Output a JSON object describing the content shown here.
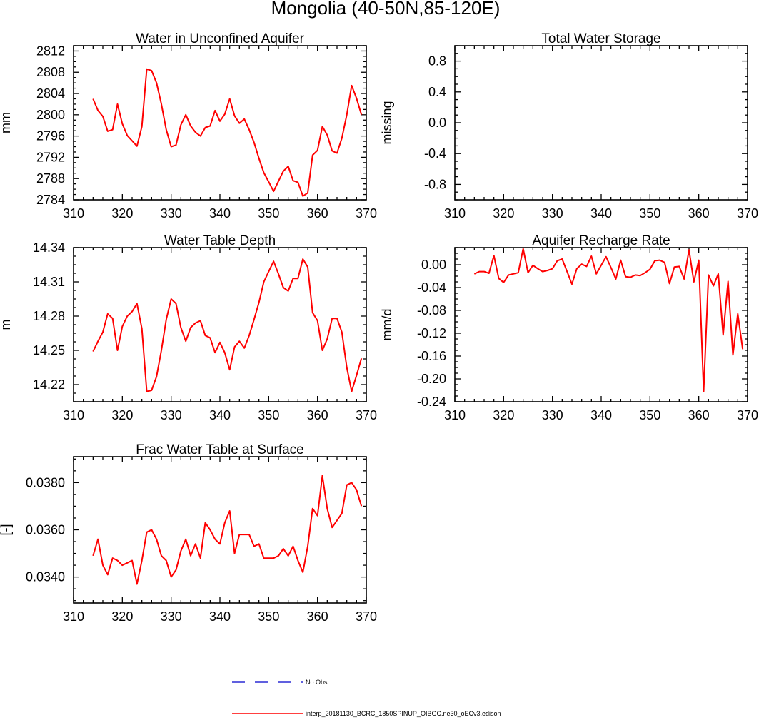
{
  "figure_title": "Mongolia (40-50N,85-120E)",
  "legend": {
    "entries": [
      {
        "label": "No Obs",
        "color": "#0000cc",
        "style": "dashed"
      },
      {
        "label": "interp_20181130_BCRC_1850SPINUP_OIBGC.ne30_oECv3.edison",
        "color": "#ff0000",
        "style": "solid"
      }
    ]
  },
  "chart_data": [
    {
      "id": "water-unconfined-aquifer",
      "type": "line",
      "title": "Water in Unconfined Aquifer",
      "xlabel": "",
      "ylabel": "mm",
      "xlim": [
        310,
        370
      ],
      "ylim": [
        2784,
        2813
      ],
      "xticks": [
        310,
        320,
        330,
        340,
        350,
        360,
        370
      ],
      "yticks": [
        2784,
        2788,
        2792,
        2796,
        2800,
        2804,
        2808,
        2812
      ],
      "ytick_labels": [
        "2784",
        "2788",
        "2792",
        "2796",
        "2800",
        "2804",
        "2808",
        "2812"
      ],
      "series": [
        {
          "name": "interp_20181130_BCRC_1850SPINUP_OIBGC.ne30_oECv3.edison",
          "color": "#ff0000",
          "x": [
            314,
            315,
            316,
            317,
            318,
            319,
            320,
            321,
            322,
            323,
            324,
            325,
            326,
            327,
            328,
            329,
            330,
            331,
            332,
            333,
            334,
            335,
            336,
            337,
            338,
            339,
            340,
            341,
            342,
            343,
            344,
            345,
            346,
            347,
            348,
            349,
            350,
            351,
            352,
            353,
            354,
            355,
            356,
            357,
            358,
            359,
            360,
            361,
            362,
            363,
            364,
            365,
            366,
            367,
            368,
            369
          ],
          "values": [
            2803,
            2800.8,
            2799.7,
            2796.9,
            2797.2,
            2802,
            2798.3,
            2796.1,
            2795.1,
            2794.1,
            2797.8,
            2808.6,
            2808.3,
            2806,
            2802,
            2797.2,
            2794,
            2794.3,
            2798.1,
            2800,
            2797.9,
            2796.7,
            2796,
            2797.6,
            2797.9,
            2800.8,
            2798.8,
            2800.1,
            2803,
            2799.8,
            2798.4,
            2799.2,
            2797.2,
            2794.8,
            2791.8,
            2789.1,
            2787.4,
            2785.6,
            2787.5,
            2789.4,
            2790.3,
            2787.6,
            2787.3,
            2784.7,
            2785.3,
            2792.4,
            2793.3,
            2797.8,
            2796.2,
            2793.2,
            2792.8,
            2795.6,
            2800,
            2805.5,
            2803.1,
            2800
          ]
        }
      ]
    },
    {
      "id": "total-water-storage",
      "type": "line",
      "title": "Total Water Storage",
      "xlabel": "",
      "ylabel": "missing",
      "xlim": [
        310,
        370
      ],
      "ylim": [
        -1,
        1
      ],
      "xticks": [
        310,
        320,
        330,
        340,
        350,
        360,
        370
      ],
      "yticks": [
        -0.8,
        -0.4,
        0,
        0.4,
        0.8
      ],
      "ytick_labels": [
        "-0.8",
        "-0.4",
        "0.0",
        "0.4",
        "0.8"
      ],
      "series": []
    },
    {
      "id": "water-table-depth",
      "type": "line",
      "title": "Water Table Depth",
      "xlabel": "",
      "ylabel": "m",
      "xlim": [
        310,
        370
      ],
      "ylim": [
        14.205,
        14.34
      ],
      "xticks": [
        310,
        320,
        330,
        340,
        350,
        360,
        370
      ],
      "yticks": [
        14.22,
        14.25,
        14.28,
        14.31,
        14.34
      ],
      "ytick_labels": [
        "14.22",
        "14.25",
        "14.28",
        "14.31",
        "14.34"
      ],
      "series": [
        {
          "name": "interp_20181130_BCRC_1850SPINUP_OIBGC.ne30_oECv3.edison",
          "color": "#ff0000",
          "x": [
            314,
            315,
            316,
            317,
            318,
            319,
            320,
            321,
            322,
            323,
            324,
            325,
            326,
            327,
            328,
            329,
            330,
            331,
            332,
            333,
            334,
            335,
            336,
            337,
            338,
            339,
            340,
            341,
            342,
            343,
            344,
            345,
            346,
            347,
            348,
            349,
            350,
            351,
            352,
            353,
            354,
            355,
            356,
            357,
            358,
            359,
            360,
            361,
            362,
            363,
            364,
            365,
            366,
            367,
            368,
            369
          ],
          "values": [
            14.249,
            14.258,
            14.266,
            14.282,
            14.278,
            14.25,
            14.271,
            14.28,
            14.284,
            14.291,
            14.269,
            14.214,
            14.215,
            14.227,
            14.25,
            14.277,
            14.295,
            14.291,
            14.27,
            14.258,
            14.27,
            14.274,
            14.276,
            14.263,
            14.261,
            14.248,
            14.257,
            14.248,
            14.233,
            14.253,
            14.258,
            14.252,
            14.263,
            14.277,
            14.292,
            14.31,
            14.319,
            14.328,
            14.317,
            14.305,
            14.302,
            14.313,
            14.313,
            14.33,
            14.323,
            14.283,
            14.276,
            14.25,
            14.26,
            14.278,
            14.278,
            14.266,
            14.235,
            14.214,
            14.228,
            14.243
          ]
        }
      ]
    },
    {
      "id": "aquifer-recharge-rate",
      "type": "line",
      "title": "Aquifer Recharge Rate",
      "xlabel": "",
      "ylabel": "mm/d",
      "xlim": [
        310,
        370
      ],
      "ylim": [
        -0.24,
        0.03
      ],
      "xticks": [
        310,
        320,
        330,
        340,
        350,
        360,
        370
      ],
      "yticks": [
        -0.24,
        -0.2,
        -0.16,
        -0.12,
        -0.08,
        -0.04,
        0
      ],
      "ytick_labels": [
        "-0.24",
        "-0.20",
        "-0.16",
        "-0.12",
        "-0.08",
        "-0.04",
        "0.00"
      ],
      "series": [
        {
          "name": "interp_20181130_BCRC_1850SPINUP_OIBGC.ne30_oECv3.edison",
          "color": "#ff0000",
          "x": [
            314,
            315,
            316,
            317,
            318,
            319,
            320,
            321,
            322,
            323,
            324,
            325,
            326,
            327,
            328,
            329,
            330,
            331,
            332,
            333,
            334,
            335,
            336,
            337,
            338,
            339,
            340,
            341,
            342,
            343,
            344,
            345,
            346,
            347,
            348,
            349,
            350,
            351,
            352,
            353,
            354,
            355,
            356,
            357,
            358,
            359,
            360,
            361,
            362,
            363,
            364,
            365,
            366,
            367,
            368,
            369
          ],
          "values": [
            -0.016,
            -0.012,
            -0.012,
            -0.015,
            0.016,
            -0.024,
            -0.031,
            -0.018,
            -0.016,
            -0.014,
            0.028,
            -0.014,
            -0.001,
            -0.007,
            -0.012,
            -0.01,
            -0.007,
            0.007,
            0.01,
            -0.012,
            -0.034,
            -0.007,
            0.001,
            -0.003,
            0.015,
            -0.016,
            -0.001,
            0.014,
            -0.005,
            -0.025,
            0.008,
            -0.021,
            -0.022,
            -0.018,
            -0.019,
            -0.014,
            -0.008,
            0.007,
            0.008,
            0.004,
            -0.033,
            -0.004,
            -0.003,
            -0.025,
            0.026,
            -0.03,
            0.008,
            -0.222,
            -0.018,
            -0.037,
            -0.016,
            -0.123,
            -0.029,
            -0.158,
            -0.086,
            -0.148
          ]
        }
      ]
    },
    {
      "id": "frac-water-table-surface",
      "type": "line",
      "title": "Frac Water Table at Surface",
      "xlabel": "",
      "ylabel": "[-]",
      "xlim": [
        310,
        370
      ],
      "ylim": [
        0.0329,
        0.0391
      ],
      "xticks": [
        310,
        320,
        330,
        340,
        350,
        360,
        370
      ],
      "yticks": [
        0.034,
        0.036,
        0.038
      ],
      "ytick_labels": [
        "0.0340",
        "0.0360",
        "0.0380"
      ],
      "series": [
        {
          "name": "interp_20181130_BCRC_1850SPINUP_OIBGC.ne30_oECv3.edison",
          "color": "#ff0000",
          "x": [
            314,
            315,
            316,
            317,
            318,
            319,
            320,
            321,
            322,
            323,
            324,
            325,
            326,
            327,
            328,
            329,
            330,
            331,
            332,
            333,
            334,
            335,
            336,
            337,
            338,
            339,
            340,
            341,
            342,
            343,
            344,
            345,
            346,
            347,
            348,
            349,
            350,
            351,
            352,
            353,
            354,
            355,
            356,
            357,
            358,
            359,
            360,
            361,
            362,
            363,
            364,
            365,
            366,
            367,
            368,
            369
          ],
          "values": [
            0.0349,
            0.0356,
            0.0345,
            0.0341,
            0.0348,
            0.0347,
            0.0345,
            0.0346,
            0.0347,
            0.0337,
            0.0347,
            0.0359,
            0.036,
            0.0356,
            0.0349,
            0.0347,
            0.034,
            0.0343,
            0.0351,
            0.0356,
            0.0349,
            0.0354,
            0.0348,
            0.0363,
            0.036,
            0.0356,
            0.0354,
            0.0363,
            0.0368,
            0.035,
            0.0358,
            0.0358,
            0.0358,
            0.0353,
            0.0354,
            0.0348,
            0.0348,
            0.0348,
            0.0349,
            0.0352,
            0.0349,
            0.0353,
            0.0347,
            0.0342,
            0.0353,
            0.0369,
            0.0366,
            0.0383,
            0.0369,
            0.0361,
            0.0364,
            0.0367,
            0.0379,
            0.038,
            0.0377,
            0.037
          ]
        }
      ]
    }
  ]
}
